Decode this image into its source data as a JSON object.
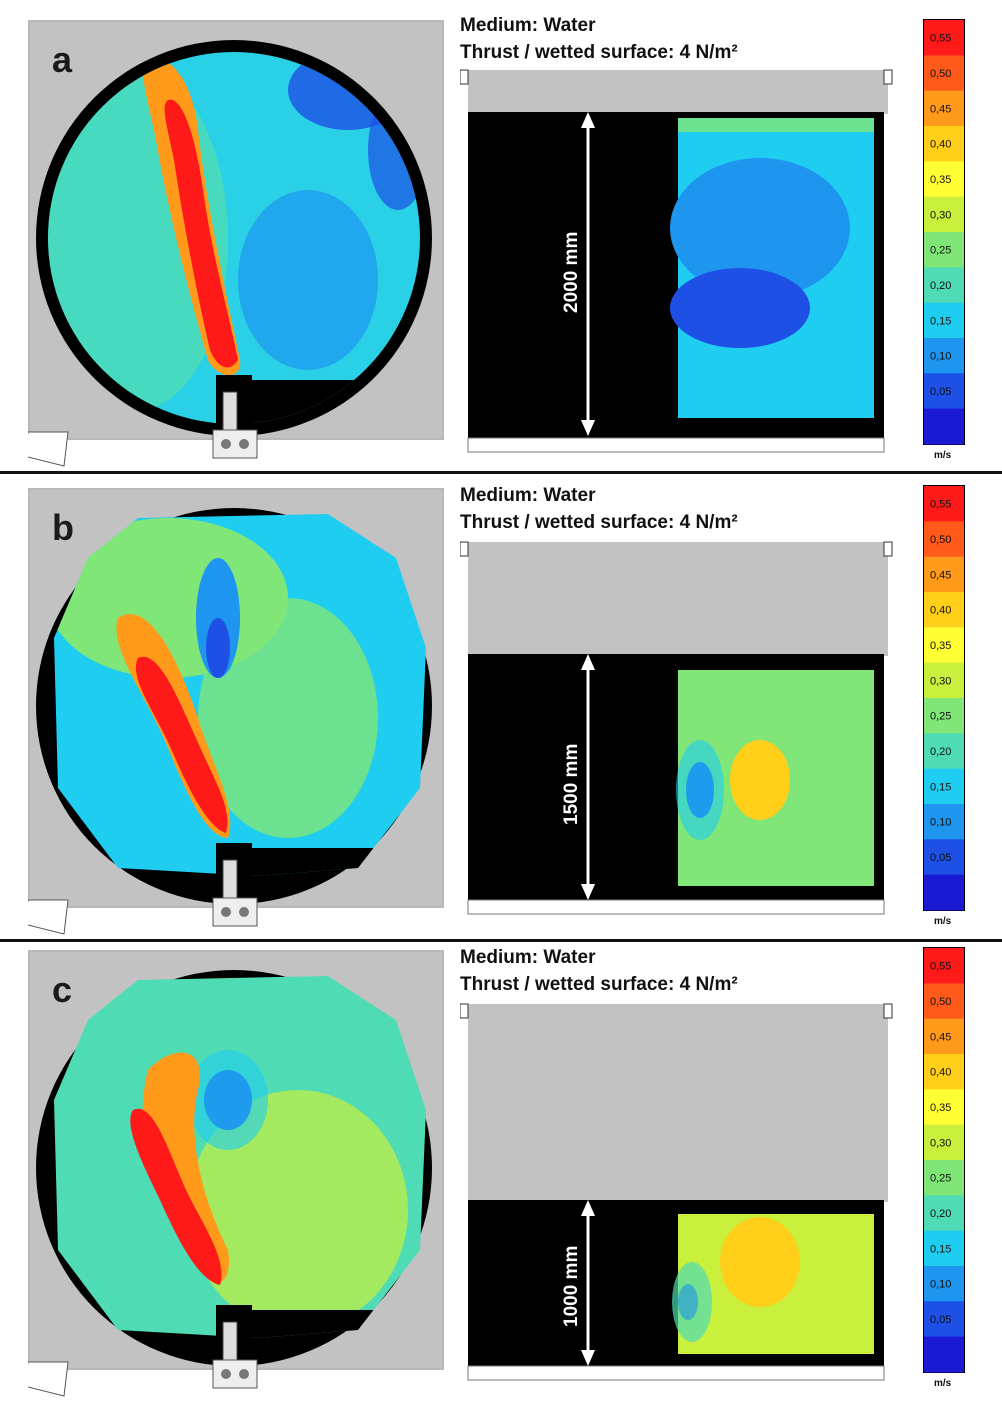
{
  "colorbar": {
    "ticks": [
      "0,55",
      "0,50",
      "0,45",
      "0,40",
      "0,35",
      "0,30",
      "0,25",
      "0,20",
      "0,15",
      "0,10",
      "0,05"
    ],
    "unit": "m/s",
    "colors": [
      "#ff1a1a",
      "#ff5a1a",
      "#ff9a1a",
      "#ffcf1a",
      "#ffff33",
      "#c8f03c",
      "#80e678",
      "#4fdcb4",
      "#1ecdf0",
      "#1e96f0",
      "#1e50e6",
      "#1a1ad2"
    ]
  },
  "panels": [
    {
      "label": "a",
      "title_line1": "Medium: Water",
      "title_line2": "Thrust / wetted surface: 4 N/m²",
      "depth": "2000 mm"
    },
    {
      "label": "b",
      "title_line1": "Medium: Water",
      "title_line2": "Thrust / wetted surface: 4 N/m²",
      "depth": "1500 mm"
    },
    {
      "label": "c",
      "title_line1": "Medium: Water",
      "title_line2": "Thrust / wetted surface: 4 N/m²",
      "depth": "1000 mm"
    }
  ]
}
